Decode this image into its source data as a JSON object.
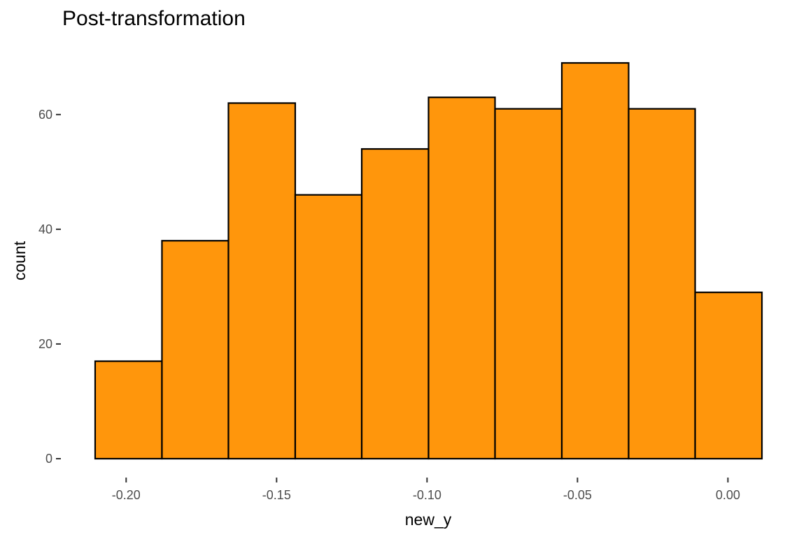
{
  "chart_data": {
    "type": "bar",
    "title": "Post-transformation",
    "xlabel": "new_y",
    "ylabel": "count",
    "bar_color": "#FF960C",
    "bar_border_color": "#000000",
    "grid": false,
    "xlim": [
      -0.2103,
      0.0113
    ],
    "ylim": [
      0,
      69
    ],
    "x_ticks": [
      -0.2,
      -0.15,
      -0.1,
      -0.05,
      0.0
    ],
    "x_tick_labels": [
      "-0.20",
      "-0.15",
      "-0.10",
      "-0.05",
      "0.00"
    ],
    "y_ticks": [
      0,
      20,
      40,
      60
    ],
    "y_tick_labels": [
      "0",
      "20",
      "40",
      "60"
    ],
    "bins": [
      {
        "x0": -0.2103,
        "x1": -0.1881,
        "count": 17
      },
      {
        "x0": -0.1881,
        "x1": -0.166,
        "count": 38
      },
      {
        "x0": -0.166,
        "x1": -0.1438,
        "count": 62
      },
      {
        "x0": -0.1438,
        "x1": -0.1217,
        "count": 46
      },
      {
        "x0": -0.1217,
        "x1": -0.0995,
        "count": 54
      },
      {
        "x0": -0.0995,
        "x1": -0.0774,
        "count": 63
      },
      {
        "x0": -0.0774,
        "x1": -0.0552,
        "count": 61
      },
      {
        "x0": -0.0552,
        "x1": -0.033,
        "count": 69
      },
      {
        "x0": -0.033,
        "x1": -0.0109,
        "count": 61
      },
      {
        "x0": -0.0109,
        "x1": 0.0113,
        "count": 29
      }
    ]
  }
}
